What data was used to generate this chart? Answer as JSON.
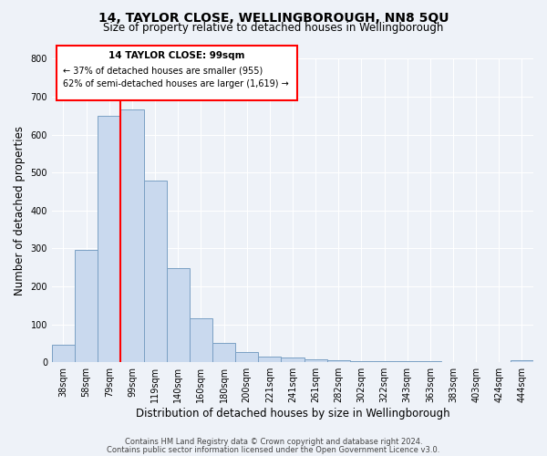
{
  "title": "14, TAYLOR CLOSE, WELLINGBOROUGH, NN8 5QU",
  "subtitle": "Size of property relative to detached houses in Wellingborough",
  "xlabel": "Distribution of detached houses by size in Wellingborough",
  "ylabel": "Number of detached properties",
  "bins": [
    "38sqm",
    "58sqm",
    "79sqm",
    "99sqm",
    "119sqm",
    "140sqm",
    "160sqm",
    "180sqm",
    "200sqm",
    "221sqm",
    "241sqm",
    "261sqm",
    "282sqm",
    "302sqm",
    "322sqm",
    "343sqm",
    "363sqm",
    "383sqm",
    "403sqm",
    "424sqm",
    "444sqm"
  ],
  "values": [
    47,
    295,
    650,
    667,
    478,
    248,
    115,
    50,
    28,
    15,
    12,
    7,
    5,
    4,
    3,
    2,
    2,
    1,
    1,
    0,
    5
  ],
  "bar_color": "#c9d9ee",
  "bar_edge_color": "#7aa0c4",
  "red_line_index": 3,
  "red_line_label": "14 TAYLOR CLOSE: 99sqm",
  "annotation_line1": "← 37% of detached houses are smaller (955)",
  "annotation_line2": "62% of semi-detached houses are larger (1,619) →",
  "ylim": [
    0,
    800
  ],
  "yticks": [
    0,
    100,
    200,
    300,
    400,
    500,
    600,
    700,
    800
  ],
  "footer_line1": "Contains HM Land Registry data © Crown copyright and database right 2024.",
  "footer_line2": "Contains public sector information licensed under the Open Government Licence v3.0.",
  "bg_color": "#eef2f8",
  "plot_bg_color": "#eef2f8",
  "title_fontsize": 10,
  "subtitle_fontsize": 8.5,
  "axis_label_fontsize": 8.5,
  "tick_fontsize": 7,
  "footer_fontsize": 6
}
